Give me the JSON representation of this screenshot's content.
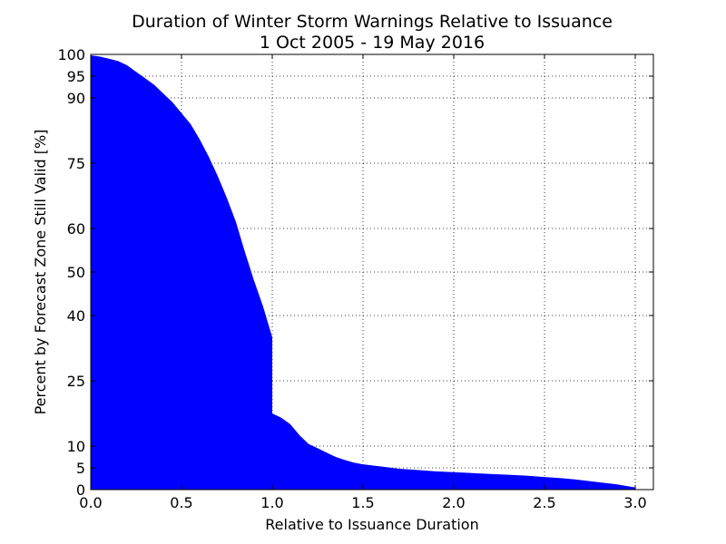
{
  "chart_data": {
    "type": "area",
    "title": "Duration of Winter Storm Warnings Relative to Issuance",
    "subtitle": "1 Oct 2005 - 19 May 2016",
    "xlabel": "Relative to Issuance Duration",
    "ylabel": "Percent by Forecast Zone Still Valid [%]",
    "xlim": [
      0,
      3.1
    ],
    "ylim": [
      0,
      100
    ],
    "x_ticks": [
      "0.0",
      "0.5",
      "1.0",
      "1.5",
      "2.0",
      "2.5",
      "3.0"
    ],
    "y_ticks": [
      "0",
      "5",
      "10",
      "25",
      "40",
      "50",
      "60",
      "75",
      "90",
      "95",
      "100"
    ],
    "grid": true,
    "fill_color": "#0000ff",
    "series": [
      {
        "x": [
          0.0,
          0.05,
          0.1,
          0.15,
          0.2,
          0.25,
          0.3,
          0.35,
          0.4,
          0.45,
          0.5,
          0.55,
          0.6,
          0.65,
          0.7,
          0.75,
          0.8,
          0.85,
          0.9,
          0.95,
          1.0,
          1.0,
          1.05,
          1.1,
          1.15,
          1.2,
          1.25,
          1.3,
          1.35,
          1.4,
          1.45,
          1.5,
          1.6,
          1.7,
          1.8,
          1.9,
          2.0,
          2.1,
          2.2,
          2.3,
          2.4,
          2.5,
          2.6,
          2.7,
          2.8,
          2.9,
          3.0
        ],
        "y": [
          99.8,
          99.5,
          99.0,
          98.5,
          97.5,
          96.0,
          94.5,
          93.0,
          91.0,
          89.0,
          86.5,
          84.0,
          80.5,
          76.5,
          72.0,
          67.0,
          61.5,
          54.5,
          48.0,
          42.0,
          35.0,
          17.5,
          16.5,
          15.0,
          12.5,
          10.5,
          9.5,
          8.5,
          7.5,
          6.8,
          6.2,
          5.8,
          5.3,
          4.8,
          4.5,
          4.2,
          4.0,
          3.8,
          3.6,
          3.4,
          3.2,
          2.9,
          2.6,
          2.2,
          1.7,
          1.2,
          0.5
        ]
      }
    ]
  }
}
